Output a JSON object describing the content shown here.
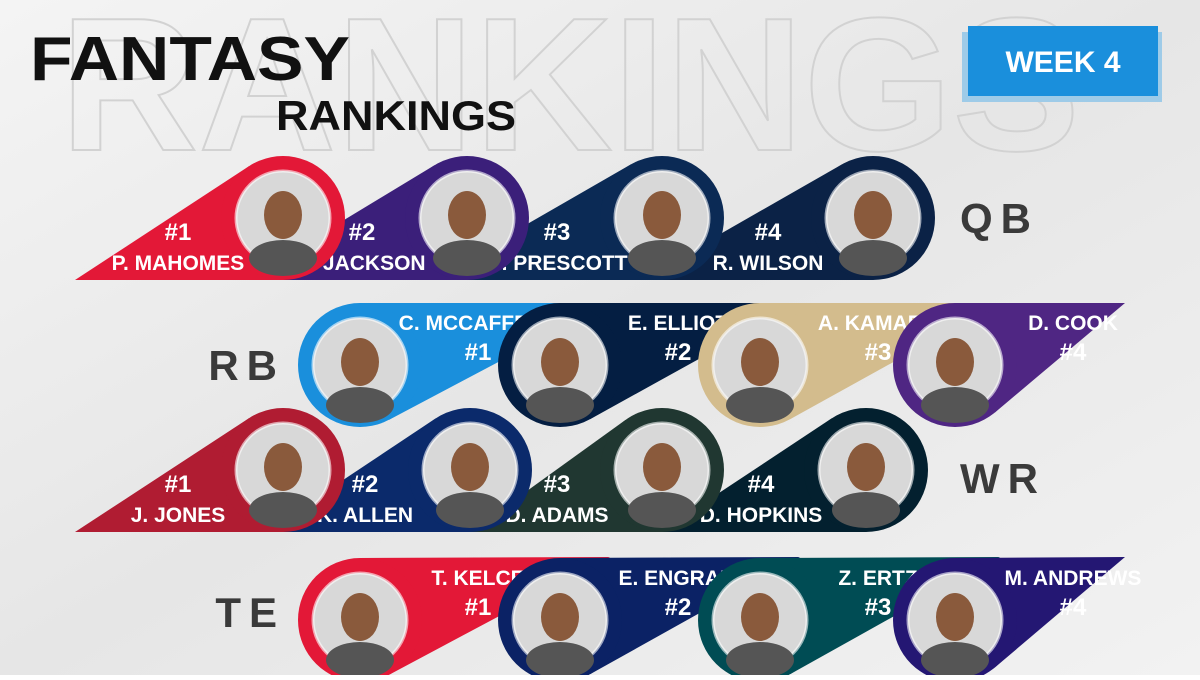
{
  "header": {
    "watermark": "RANKINGS",
    "title": "FANTASY",
    "subtitle": "RANKINGS",
    "badge": "WEEK 4"
  },
  "groups": [
    {
      "position": "QB",
      "players": [
        {
          "rank": "#1",
          "name": "P. MAHOMES"
        },
        {
          "rank": "#2",
          "name": "L. JACKSON"
        },
        {
          "rank": "#3",
          "name": "D. PRESCOTT"
        },
        {
          "rank": "#4",
          "name": "R. WILSON"
        }
      ]
    },
    {
      "position": "RB",
      "players": [
        {
          "rank": "#1",
          "name": "C. MCCAFFREY"
        },
        {
          "rank": "#2",
          "name": "E. ELLIOT"
        },
        {
          "rank": "#3",
          "name": "A. KAMARA"
        },
        {
          "rank": "#4",
          "name": "D. COOK"
        }
      ]
    },
    {
      "position": "WR",
      "players": [
        {
          "rank": "#1",
          "name": "J. JONES"
        },
        {
          "rank": "#2",
          "name": "K. ALLEN"
        },
        {
          "rank": "#3",
          "name": "D. ADAMS"
        },
        {
          "rank": "#4",
          "name": "D. HOPKINS"
        }
      ]
    },
    {
      "position": "TE",
      "players": [
        {
          "rank": "#1",
          "name": "T. KELCE"
        },
        {
          "rank": "#2",
          "name": "E. ENGRAM"
        },
        {
          "rank": "#3",
          "name": "Z. ERTZ"
        },
        {
          "rank": "#4",
          "name": "M. ANDREWS"
        }
      ]
    }
  ]
}
